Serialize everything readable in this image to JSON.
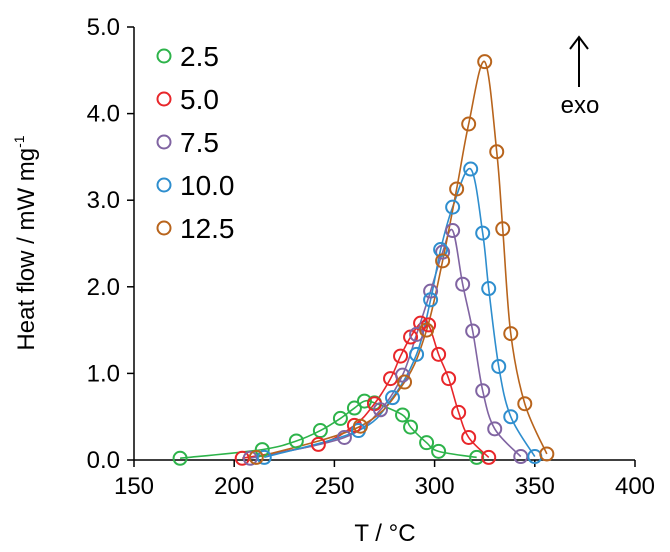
{
  "chart_data": {
    "type": "scatter",
    "title": "",
    "xlabel": "T / °C",
    "ylabel_main": "Heat flow / mW mg",
    "ylabel_sup": "-1",
    "xlim": [
      150,
      400
    ],
    "ylim": [
      0,
      5
    ],
    "xticks": [
      150,
      200,
      250,
      300,
      350,
      400
    ],
    "yticks": [
      "0.0",
      "1.0",
      "2.0",
      "3.0",
      "4.0",
      "5.0"
    ],
    "legend_position": "top-left",
    "annotation": {
      "text": "exo",
      "arrow": "up"
    },
    "series": [
      {
        "name": "2.5",
        "color": "#2db34a",
        "x": [
          173,
          214,
          231,
          243,
          253,
          260,
          265,
          270,
          284,
          288,
          296,
          302,
          321
        ],
        "y": [
          0.02,
          0.12,
          0.22,
          0.34,
          0.48,
          0.6,
          0.68,
          0.66,
          0.52,
          0.38,
          0.2,
          0.1,
          0.03
        ]
      },
      {
        "name": "5.0",
        "color": "#e8262a",
        "x": [
          204,
          242,
          260,
          270,
          278,
          283,
          288,
          293,
          297,
          302,
          307,
          312,
          317,
          327
        ],
        "y": [
          0.02,
          0.18,
          0.4,
          0.65,
          0.94,
          1.2,
          1.42,
          1.58,
          1.56,
          1.22,
          0.94,
          0.55,
          0.26,
          0.03
        ]
      },
      {
        "name": "7.5",
        "color": "#8064a2",
        "x": [
          208,
          255,
          273,
          284,
          291,
          298,
          304,
          309,
          314,
          319,
          324,
          330,
          343
        ],
        "y": [
          0.02,
          0.26,
          0.58,
          0.98,
          1.45,
          1.95,
          2.4,
          2.65,
          2.03,
          1.49,
          0.8,
          0.36,
          0.04
        ]
      },
      {
        "name": "10.0",
        "color": "#2e8ece",
        "x": [
          215,
          262,
          279,
          291,
          298,
          303,
          309,
          318,
          324,
          327,
          332,
          338,
          350
        ],
        "y": [
          0.03,
          0.34,
          0.72,
          1.22,
          1.85,
          2.43,
          2.92,
          3.36,
          2.62,
          1.98,
          1.08,
          0.5,
          0.04
        ]
      },
      {
        "name": "12.5",
        "color": "#b8641c",
        "x": [
          211,
          263,
          285,
          296,
          304,
          311,
          317,
          325,
          331,
          334,
          338,
          345,
          356
        ],
        "y": [
          0.03,
          0.39,
          0.9,
          1.5,
          2.3,
          3.13,
          3.88,
          4.6,
          3.56,
          2.67,
          1.46,
          0.65,
          0.07
        ]
      }
    ]
  }
}
